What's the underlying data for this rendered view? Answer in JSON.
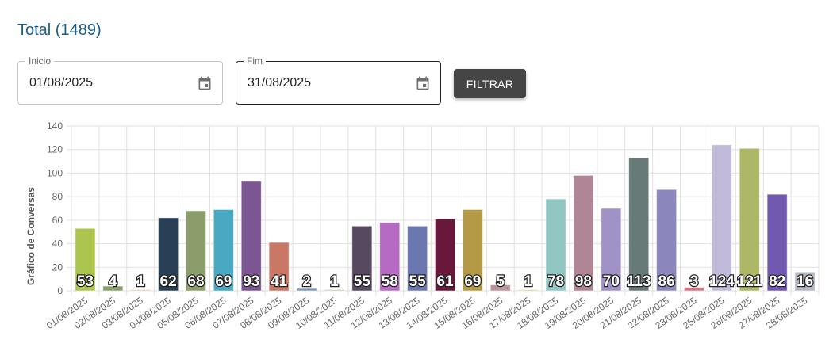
{
  "header": {
    "title": "Total (1489)"
  },
  "filters": {
    "start": {
      "label": "Inicio",
      "value": "01/08/2025",
      "icon": "calendar-icon"
    },
    "end": {
      "label": "Fim",
      "value": "31/08/2025",
      "icon": "calendar-icon"
    },
    "button_label": "FILTRAR"
  },
  "chart_data": {
    "type": "bar",
    "title": "",
    "xlabel": "",
    "ylabel": "Gráfico de Conversas",
    "ylim": [
      0,
      140
    ],
    "yticks": [
      0,
      20,
      40,
      60,
      80,
      100,
      120,
      140
    ],
    "grid": true,
    "legend": "none",
    "categories": [
      "01/08/2025",
      "02/08/2025",
      "03/08/2025",
      "04/08/2025",
      "05/08/2025",
      "06/08/2025",
      "07/08/2025",
      "08/08/2025",
      "09/08/2025",
      "10/08/2025",
      "11/08/2025",
      "12/08/2025",
      "13/08/2025",
      "14/08/2025",
      "15/08/2025",
      "16/08/2025",
      "17/08/2025",
      "18/08/2025",
      "19/08/2025",
      "20/08/2025",
      "21/08/2025",
      "22/08/2025",
      "23/08/2025",
      "25/08/2025",
      "26/08/2025",
      "27/08/2025",
      "28/08/2025"
    ],
    "values": [
      53,
      4,
      1,
      62,
      68,
      69,
      93,
      41,
      2,
      1,
      55,
      58,
      55,
      61,
      69,
      5,
      1,
      78,
      98,
      70,
      113,
      86,
      3,
      124,
      121,
      82,
      16
    ],
    "colors": [
      "#acc54e",
      "#8aa06a",
      "#e0cfae",
      "#283f55",
      "#8c9d6c",
      "#4aa9c2",
      "#7c5693",
      "#c87865",
      "#7b9bbd",
      "#c3cab0",
      "#574a60",
      "#b56bc3",
      "#6a78af",
      "#69173b",
      "#b49a47",
      "#bc959b",
      "#ded79e",
      "#91c6c2",
      "#b08696",
      "#a091c6",
      "#677a77",
      "#8b87bd",
      "#d07684",
      "#c1bbd9",
      "#adb765",
      "#7159b1",
      "#b3b9c1"
    ]
  }
}
